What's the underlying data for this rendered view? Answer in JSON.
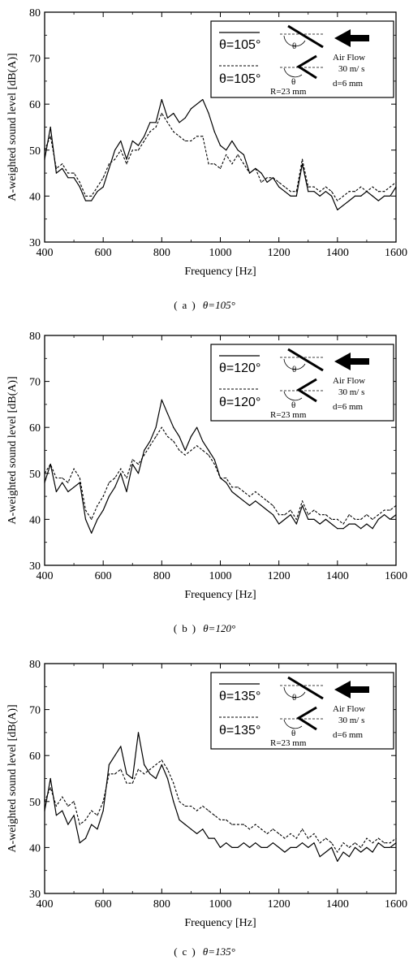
{
  "chart_data": [
    {
      "type": "line",
      "panel_label": "(a)",
      "panel_angle": "θ=105°",
      "xlabel": "Frequency [Hz]",
      "ylabel": "A-weighted sound level [dB(A)]",
      "xlim": [
        400,
        1600
      ],
      "ylim": [
        30,
        80
      ],
      "xticks": [
        400,
        600,
        800,
        1000,
        1200,
        1400,
        1600
      ],
      "yticks": [
        30,
        40,
        50,
        60,
        70,
        80
      ],
      "grid": false,
      "legend": {
        "placement": "top-right",
        "solid_label": "θ=105°",
        "dashed_label": "θ=105°",
        "air_flow": "Air Flow",
        "speed": "30 m/ s",
        "d": "d=6 mm",
        "R": "R=23 mm",
        "theta_symbol": "θ"
      },
      "series": [
        {
          "style": "solid",
          "x": [
            400,
            420,
            440,
            460,
            480,
            500,
            520,
            540,
            560,
            580,
            600,
            620,
            640,
            660,
            680,
            700,
            720,
            740,
            760,
            780,
            800,
            820,
            840,
            860,
            880,
            900,
            920,
            940,
            960,
            980,
            1000,
            1020,
            1040,
            1060,
            1080,
            1100,
            1120,
            1140,
            1160,
            1180,
            1200,
            1220,
            1240,
            1260,
            1280,
            1300,
            1320,
            1340,
            1360,
            1380,
            1400,
            1420,
            1440,
            1460,
            1480,
            1500,
            1520,
            1540,
            1560,
            1580,
            1600
          ],
          "y": [
            48,
            55,
            45,
            46,
            44,
            44,
            42,
            39,
            39,
            41,
            42,
            46,
            50,
            52,
            48,
            52,
            51,
            53,
            56,
            56,
            61,
            57,
            58,
            56,
            57,
            59,
            60,
            61,
            58,
            54,
            51,
            50,
            52,
            50,
            49,
            45,
            46,
            45,
            43,
            44,
            42,
            41,
            40,
            40,
            47,
            41,
            41,
            40,
            41,
            40,
            37,
            38,
            39,
            40,
            40,
            41,
            40,
            39,
            40,
            40,
            42
          ]
        },
        {
          "style": "dashed",
          "x": [
            400,
            420,
            440,
            460,
            480,
            500,
            520,
            540,
            560,
            580,
            600,
            620,
            640,
            660,
            680,
            700,
            720,
            740,
            760,
            780,
            800,
            820,
            840,
            860,
            880,
            900,
            920,
            940,
            960,
            980,
            1000,
            1020,
            1040,
            1060,
            1080,
            1100,
            1120,
            1140,
            1160,
            1180,
            1200,
            1220,
            1240,
            1260,
            1280,
            1300,
            1320,
            1340,
            1360,
            1380,
            1400,
            1420,
            1440,
            1460,
            1480,
            1500,
            1520,
            1540,
            1560,
            1580,
            1600
          ],
          "y": [
            50,
            53,
            46,
            47,
            45,
            45,
            43,
            40,
            40,
            42,
            44,
            47,
            48,
            50,
            47,
            50,
            50,
            52,
            54,
            55,
            58,
            56,
            54,
            53,
            52,
            52,
            53,
            53,
            47,
            47,
            46,
            49,
            47,
            49,
            47,
            45,
            46,
            43,
            44,
            44,
            43,
            42,
            41,
            41,
            48,
            42,
            42,
            41,
            42,
            41,
            39,
            40,
            41,
            41,
            42,
            41,
            42,
            41,
            41,
            42,
            43
          ]
        }
      ]
    },
    {
      "type": "line",
      "panel_label": "(b)",
      "panel_angle": "θ=120°",
      "xlabel": "Frequency [Hz]",
      "ylabel": "A-weighted sound level [dB(A)]",
      "xlim": [
        400,
        1600
      ],
      "ylim": [
        30,
        80
      ],
      "xticks": [
        400,
        600,
        800,
        1000,
        1200,
        1400,
        1600
      ],
      "yticks": [
        30,
        40,
        50,
        60,
        70,
        80
      ],
      "grid": false,
      "legend": {
        "placement": "top-right",
        "solid_label": "θ=120°",
        "dashed_label": "θ=120°",
        "air_flow": "Air Flow",
        "speed": "30 m/ s",
        "d": "d=6 mm",
        "R": "R=23 mm",
        "theta_symbol": "θ"
      },
      "series": [
        {
          "style": "solid",
          "x": [
            400,
            420,
            440,
            460,
            480,
            500,
            520,
            540,
            560,
            580,
            600,
            620,
            640,
            660,
            680,
            700,
            720,
            740,
            760,
            780,
            800,
            820,
            840,
            860,
            880,
            900,
            920,
            940,
            960,
            980,
            1000,
            1020,
            1040,
            1060,
            1080,
            1100,
            1120,
            1140,
            1160,
            1180,
            1200,
            1220,
            1240,
            1260,
            1280,
            1300,
            1320,
            1340,
            1360,
            1380,
            1400,
            1420,
            1440,
            1460,
            1480,
            1500,
            1520,
            1540,
            1560,
            1580,
            1600
          ],
          "y": [
            48,
            52,
            46,
            48,
            46,
            47,
            48,
            40,
            37,
            40,
            42,
            45,
            47,
            50,
            46,
            52,
            50,
            55,
            57,
            60,
            66,
            63,
            60,
            58,
            55,
            58,
            60,
            57,
            55,
            53,
            49,
            48,
            46,
            45,
            44,
            43,
            44,
            43,
            42,
            41,
            39,
            40,
            41,
            39,
            43,
            40,
            40,
            39,
            40,
            39,
            38,
            38,
            39,
            39,
            38,
            39,
            38,
            40,
            41,
            40,
            41
          ]
        },
        {
          "style": "dashed",
          "x": [
            400,
            420,
            440,
            460,
            480,
            500,
            520,
            540,
            560,
            580,
            600,
            620,
            640,
            660,
            680,
            700,
            720,
            740,
            760,
            780,
            800,
            820,
            840,
            860,
            880,
            900,
            920,
            940,
            960,
            980,
            1000,
            1020,
            1040,
            1060,
            1080,
            1100,
            1120,
            1140,
            1160,
            1180,
            1200,
            1220,
            1240,
            1260,
            1280,
            1300,
            1320,
            1340,
            1360,
            1380,
            1400,
            1420,
            1440,
            1460,
            1480,
            1500,
            1520,
            1540,
            1560,
            1580,
            1600
          ],
          "y": [
            50,
            52,
            49,
            49,
            48,
            51,
            49,
            42,
            40,
            43,
            45,
            48,
            49,
            51,
            49,
            53,
            52,
            54,
            56,
            58,
            60,
            58,
            57,
            55,
            54,
            55,
            56,
            55,
            54,
            52,
            49,
            49,
            47,
            47,
            46,
            45,
            46,
            45,
            44,
            43,
            41,
            41,
            42,
            40,
            44,
            41,
            42,
            41,
            41,
            40,
            40,
            39,
            41,
            40,
            40,
            41,
            40,
            41,
            42,
            42,
            43
          ]
        }
      ]
    },
    {
      "type": "line",
      "panel_label": "(c)",
      "panel_angle": "θ=135°",
      "xlabel": "Frequency [Hz]",
      "ylabel": "A-weighted sound level [dB(A)]",
      "xlim": [
        400,
        1600
      ],
      "ylim": [
        30,
        80
      ],
      "xticks": [
        400,
        600,
        800,
        1000,
        1200,
        1400,
        1600
      ],
      "yticks": [
        30,
        40,
        50,
        60,
        70,
        80
      ],
      "grid": false,
      "legend": {
        "placement": "top-right",
        "solid_label": "θ=135°",
        "dashed_label": "θ=135°",
        "air_flow": "Air Flow",
        "speed": "30 m/ s",
        "d": "d=6 mm",
        "R": "R=23 mm",
        "theta_symbol": "θ"
      },
      "series": [
        {
          "style": "solid",
          "x": [
            400,
            420,
            440,
            460,
            480,
            500,
            520,
            540,
            560,
            580,
            600,
            620,
            640,
            660,
            680,
            700,
            720,
            740,
            760,
            780,
            800,
            820,
            840,
            860,
            880,
            900,
            920,
            940,
            960,
            980,
            1000,
            1020,
            1040,
            1060,
            1080,
            1100,
            1120,
            1140,
            1160,
            1180,
            1200,
            1220,
            1240,
            1260,
            1280,
            1300,
            1320,
            1340,
            1360,
            1380,
            1400,
            1420,
            1440,
            1460,
            1480,
            1500,
            1520,
            1540,
            1560,
            1580,
            1600
          ],
          "y": [
            48,
            55,
            47,
            48,
            45,
            47,
            41,
            42,
            45,
            44,
            48,
            58,
            60,
            62,
            56,
            55,
            65,
            58,
            56,
            55,
            58,
            55,
            50,
            46,
            45,
            44,
            43,
            44,
            42,
            42,
            40,
            41,
            40,
            40,
            41,
            40,
            41,
            40,
            40,
            41,
            40,
            39,
            40,
            40,
            41,
            40,
            41,
            38,
            39,
            40,
            37,
            39,
            38,
            40,
            39,
            40,
            39,
            41,
            40,
            40,
            41
          ]
        },
        {
          "style": "dashed",
          "x": [
            400,
            420,
            440,
            460,
            480,
            500,
            520,
            540,
            560,
            580,
            600,
            620,
            640,
            660,
            680,
            700,
            720,
            740,
            760,
            780,
            800,
            820,
            840,
            860,
            880,
            900,
            920,
            940,
            960,
            980,
            1000,
            1020,
            1040,
            1060,
            1080,
            1100,
            1120,
            1140,
            1160,
            1180,
            1200,
            1220,
            1240,
            1260,
            1280,
            1300,
            1320,
            1340,
            1360,
            1380,
            1400,
            1420,
            1440,
            1460,
            1480,
            1500,
            1520,
            1540,
            1560,
            1580,
            1600
          ],
          "y": [
            50,
            53,
            49,
            51,
            49,
            50,
            45,
            46,
            48,
            47,
            50,
            56,
            56,
            57,
            54,
            54,
            57,
            56,
            57,
            58,
            59,
            57,
            54,
            50,
            49,
            49,
            48,
            49,
            48,
            47,
            46,
            46,
            45,
            45,
            45,
            44,
            45,
            44,
            43,
            44,
            43,
            42,
            43,
            42,
            44,
            42,
            43,
            41,
            42,
            41,
            39,
            41,
            40,
            41,
            40,
            42,
            41,
            42,
            41,
            41,
            42
          ]
        }
      ]
    }
  ]
}
